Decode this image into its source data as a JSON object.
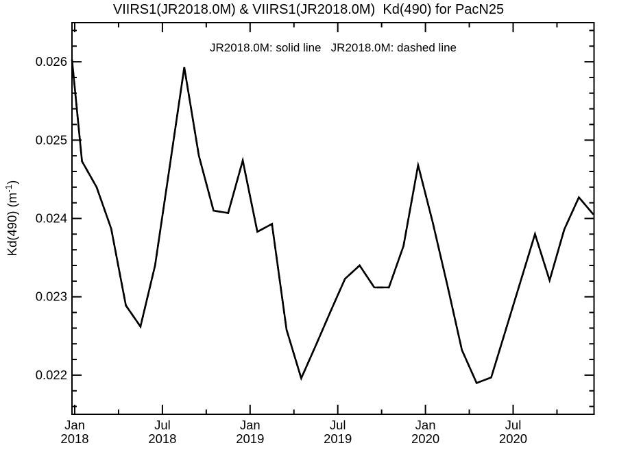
{
  "figure": {
    "title": "VIIRS1(JR2018.0M) & VIIRS1(JR2018.0M)  Kd(490) for PacN25",
    "legend": "JR2018.0M: solid line   JR2018.0M: dashed line",
    "background_color": "#ffffff",
    "line_color": "#000000"
  },
  "chart_data": {
    "type": "line",
    "title": "VIIRS1(JR2018.0M) & VIIRS1(JR2018.0M)  Kd(490) for PacN25",
    "annotation": "JR2018.0M: solid line   JR2018.0M: dashed line",
    "xlabel": "",
    "ylabel": "Kd(490) (m⁻¹)",
    "ylabel_parts": {
      "base": "Kd(490) (m",
      "sup": "-1",
      "close": ")"
    },
    "ylim": [
      0.0215,
      0.0265
    ],
    "grid": "off",
    "legend_position": "top-center-inside",
    "y_major_ticks": [
      {
        "value": 0.022,
        "label": "0.022"
      },
      {
        "value": 0.023,
        "label": "0.023"
      },
      {
        "value": 0.024,
        "label": "0.024"
      },
      {
        "value": 0.025,
        "label": "0.025"
      },
      {
        "value": 0.026,
        "label": "0.026"
      }
    ],
    "y_minor_step": 0.0002,
    "x_major_ticks": [
      {
        "month_offset": 0,
        "line1": "Jan",
        "line2": "2018"
      },
      {
        "month_offset": 6,
        "line1": "Jul",
        "line2": "2018"
      },
      {
        "month_offset": 12,
        "line1": "Jan",
        "line2": "2019"
      },
      {
        "month_offset": 18,
        "line1": "Jul",
        "line2": "2019"
      },
      {
        "month_offset": 24,
        "line1": "Jan",
        "line2": "2020"
      },
      {
        "month_offset": 30,
        "line1": "Jul",
        "line2": "2020"
      }
    ],
    "x_minor_tick_month_offsets": [
      3,
      9,
      15,
      21,
      27,
      33
    ],
    "categories": [
      "Jan 2018",
      "Feb 2018",
      "Mar 2018",
      "Apr 2018",
      "May 2018",
      "Jun 2018",
      "Jul 2018",
      "Aug 2018",
      "Sep 2018",
      "Oct 2018",
      "Nov 2018",
      "Dec 2018",
      "Jan 2019",
      "Feb 2019",
      "Mar 2019",
      "Apr 2019",
      "May 2019",
      "Jun 2019",
      "Jul 2019",
      "Aug 2019",
      "Sep 2019",
      "Oct 2019",
      "Nov 2019",
      "Dec 2019",
      "Jan 2020",
      "Feb 2020",
      "Mar 2020",
      "Apr 2020",
      "May 2020",
      "Jun 2020",
      "Jul 2020",
      "Aug 2020",
      "Sep 2020",
      "Oct 2020",
      "Nov 2020",
      "Dec 2020"
    ],
    "values": [
      0.02473,
      0.0244,
      0.02387,
      0.02289,
      0.02262,
      0.0234,
      0.02466,
      0.02593,
      0.0248,
      0.0241,
      0.02407,
      0.02474,
      0.02383,
      0.02393,
      0.02258,
      0.02196,
      0.02238,
      0.02281,
      0.02323,
      0.0234,
      0.02312,
      0.02312,
      0.02365,
      0.02468,
      0.02395,
      0.02315,
      0.02232,
      0.0219,
      0.02197,
      0.02258,
      0.02319,
      0.0238,
      0.02321,
      0.02386,
      0.02427,
      0.02405
    ],
    "edge_start": {
      "value": 0.02603,
      "note": "curve enters plot at left axis edge just before Jan 2018"
    },
    "series": [
      {
        "name": "VIIRS1(JR2018.0M)",
        "reprocessing": "JR2018.0M",
        "line_style": "solid"
      },
      {
        "name": "VIIRS1(JR2018.0M)",
        "reprocessing": "JR2018.0M",
        "line_style": "dashed"
      }
    ]
  }
}
